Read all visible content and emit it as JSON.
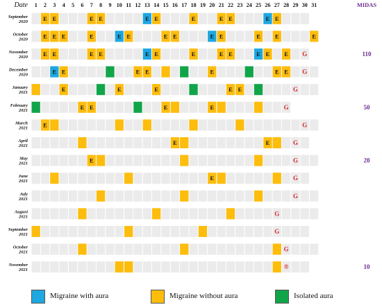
{
  "chart_data": {
    "type": "heatmap",
    "header_label": "Date",
    "midas_label": "MIDAS",
    "days": [
      1,
      2,
      3,
      4,
      5,
      6,
      7,
      8,
      9,
      10,
      11,
      12,
      13,
      14,
      15,
      16,
      17,
      18,
      19,
      20,
      21,
      22,
      23,
      24,
      25,
      26,
      27,
      28,
      29,
      30,
      31
    ],
    "rows": [
      {
        "month": "September",
        "year": "2020",
        "midas": "",
        "days_in_month": 30,
        "cells": [
          {
            "day": 2,
            "type": "without",
            "label": "E"
          },
          {
            "day": 3,
            "type": "without",
            "label": "E"
          },
          {
            "day": 7,
            "type": "without",
            "label": "E"
          },
          {
            "day": 8,
            "type": "without",
            "label": "E"
          },
          {
            "day": 13,
            "type": "with",
            "label": "E"
          },
          {
            "day": 14,
            "type": "without",
            "label": "E"
          },
          {
            "day": 18,
            "type": "without",
            "label": "E"
          },
          {
            "day": 21,
            "type": "without",
            "label": "E"
          },
          {
            "day": 22,
            "type": "without",
            "label": "E"
          },
          {
            "day": 26,
            "type": "with",
            "label": "E"
          },
          {
            "day": 27,
            "type": "without",
            "label": "E"
          }
        ],
        "g_day": null
      },
      {
        "month": "October",
        "year": "2020",
        "midas": "",
        "days_in_month": 31,
        "cells": [
          {
            "day": 2,
            "type": "without",
            "label": "E"
          },
          {
            "day": 3,
            "type": "without",
            "label": "E"
          },
          {
            "day": 4,
            "type": "without",
            "label": "E"
          },
          {
            "day": 7,
            "type": "without",
            "label": "E"
          },
          {
            "day": 10,
            "type": "with",
            "label": "E"
          },
          {
            "day": 11,
            "type": "without",
            "label": "E"
          },
          {
            "day": 15,
            "type": "without",
            "label": "E"
          },
          {
            "day": 16,
            "type": "without",
            "label": "E"
          },
          {
            "day": 20,
            "type": "with",
            "label": "E"
          },
          {
            "day": 21,
            "type": "without",
            "label": "E"
          },
          {
            "day": 25,
            "type": "without",
            "label": "E"
          },
          {
            "day": 27,
            "type": "without",
            "label": "E"
          },
          {
            "day": 31,
            "type": "without",
            "label": "E"
          }
        ],
        "g_day": null
      },
      {
        "month": "November",
        "year": "2020",
        "midas": "110",
        "days_in_month": 30,
        "cells": [
          {
            "day": 2,
            "type": "without",
            "label": "E"
          },
          {
            "day": 3,
            "type": "without",
            "label": "E"
          },
          {
            "day": 7,
            "type": "without",
            "label": "E"
          },
          {
            "day": 8,
            "type": "without",
            "label": "E"
          },
          {
            "day": 13,
            "type": "with",
            "label": "E"
          },
          {
            "day": 14,
            "type": "without",
            "label": "E"
          },
          {
            "day": 18,
            "type": "without",
            "label": "E"
          },
          {
            "day": 21,
            "type": "without",
            "label": "E"
          },
          {
            "day": 22,
            "type": "without",
            "label": "E"
          },
          {
            "day": 25,
            "type": "with",
            "label": "E"
          },
          {
            "day": 26,
            "type": "without",
            "label": "E"
          },
          {
            "day": 28,
            "type": "without",
            "label": "E"
          }
        ],
        "g_day": 30,
        "g_mark": "G"
      },
      {
        "month": "December",
        "year": "2020",
        "midas": "",
        "days_in_month": 31,
        "cells": [
          {
            "day": 3,
            "type": "with",
            "label": "E"
          },
          {
            "day": 4,
            "type": "without",
            "label": "E"
          },
          {
            "day": 9,
            "type": "isolated",
            "label": ""
          },
          {
            "day": 12,
            "type": "without",
            "label": "E"
          },
          {
            "day": 13,
            "type": "without",
            "label": "E"
          },
          {
            "day": 15,
            "type": "without",
            "label": ""
          },
          {
            "day": 17,
            "type": "isolated",
            "label": ""
          },
          {
            "day": 20,
            "type": "without",
            "label": "E"
          },
          {
            "day": 24,
            "type": "isolated",
            "label": ""
          },
          {
            "day": 27,
            "type": "without",
            "label": "E"
          },
          {
            "day": 28,
            "type": "without",
            "label": "E"
          }
        ],
        "g_day": 30,
        "g_mark": "G"
      },
      {
        "month": "January",
        "year": "2021",
        "midas": "",
        "days_in_month": 31,
        "cells": [
          {
            "day": 1,
            "type": "without",
            "label": ""
          },
          {
            "day": 4,
            "type": "without",
            "label": "E"
          },
          {
            "day": 8,
            "type": "isolated",
            "label": ""
          },
          {
            "day": 10,
            "type": "without",
            "label": "E"
          },
          {
            "day": 14,
            "type": "without",
            "label": "E"
          },
          {
            "day": 18,
            "type": "isolated",
            "label": ""
          },
          {
            "day": 22,
            "type": "without",
            "label": "E"
          },
          {
            "day": 23,
            "type": "without",
            "label": "E"
          },
          {
            "day": 25,
            "type": "isolated",
            "label": ""
          }
        ],
        "g_day": 29,
        "g_mark": "G"
      },
      {
        "month": "February",
        "year": "2021",
        "midas": "50",
        "days_in_month": 28,
        "cells": [
          {
            "day": 1,
            "type": "isolated",
            "label": ""
          },
          {
            "day": 6,
            "type": "without",
            "label": "E"
          },
          {
            "day": 7,
            "type": "without",
            "label": "E"
          },
          {
            "day": 12,
            "type": "isolated",
            "label": ""
          },
          {
            "day": 15,
            "type": "without",
            "label": "E"
          },
          {
            "day": 16,
            "type": "without",
            "label": ""
          },
          {
            "day": 20,
            "type": "without",
            "label": "E"
          },
          {
            "day": 21,
            "type": "without",
            "label": ""
          },
          {
            "day": 25,
            "type": "without",
            "label": ""
          }
        ],
        "g_day": 28,
        "g_mark": "G"
      },
      {
        "month": "March",
        "year": "2021",
        "midas": "",
        "days_in_month": 31,
        "cells": [
          {
            "day": 2,
            "type": "without",
            "label": "E"
          },
          {
            "day": 3,
            "type": "without",
            "label": ""
          },
          {
            "day": 10,
            "type": "without",
            "label": ""
          },
          {
            "day": 13,
            "type": "without",
            "label": ""
          },
          {
            "day": 18,
            "type": "without",
            "label": ""
          },
          {
            "day": 23,
            "type": "without",
            "label": ""
          }
        ],
        "g_day": 30,
        "g_mark": "G"
      },
      {
        "month": "April",
        "year": "2021",
        "midas": "",
        "days_in_month": 30,
        "cells": [
          {
            "day": 6,
            "type": "without",
            "label": ""
          },
          {
            "day": 16,
            "type": "without",
            "label": "E"
          },
          {
            "day": 17,
            "type": "without",
            "label": ""
          },
          {
            "day": 26,
            "type": "without",
            "label": "E"
          },
          {
            "day": 27,
            "type": "without",
            "label": ""
          }
        ],
        "g_day": 29,
        "g_mark": "G"
      },
      {
        "month": "May",
        "year": "2021",
        "midas": "20",
        "days_in_month": 31,
        "cells": [
          {
            "day": 7,
            "type": "without",
            "label": "E"
          },
          {
            "day": 8,
            "type": "without",
            "label": ""
          },
          {
            "day": 17,
            "type": "without",
            "label": ""
          },
          {
            "day": 25,
            "type": "without",
            "label": ""
          }
        ],
        "g_day": 29,
        "g_mark": "G"
      },
      {
        "month": "June",
        "year": "2021",
        "midas": "",
        "days_in_month": 30,
        "cells": [
          {
            "day": 3,
            "type": "without",
            "label": ""
          },
          {
            "day": 11,
            "type": "without",
            "label": ""
          },
          {
            "day": 20,
            "type": "without",
            "label": "E"
          },
          {
            "day": 21,
            "type": "without",
            "label": ""
          },
          {
            "day": 27,
            "type": "without",
            "label": ""
          }
        ],
        "g_day": 29,
        "g_mark": "G"
      },
      {
        "month": "July",
        "year": "2021",
        "midas": "",
        "days_in_month": 31,
        "cells": [
          {
            "day": 8,
            "type": "without",
            "label": ""
          },
          {
            "day": 17,
            "type": "without",
            "label": ""
          },
          {
            "day": 25,
            "type": "without",
            "label": ""
          }
        ],
        "g_day": 29,
        "g_mark": "G"
      },
      {
        "month": "August",
        "year": "2021",
        "midas": "",
        "days_in_month": 31,
        "cells": [
          {
            "day": 6,
            "type": "without",
            "label": ""
          },
          {
            "day": 14,
            "type": "without",
            "label": ""
          },
          {
            "day": 22,
            "type": "without",
            "label": ""
          }
        ],
        "g_day": 27,
        "g_mark": "G"
      },
      {
        "month": "September",
        "year": "2021",
        "midas": "",
        "days_in_month": 30,
        "cells": [
          {
            "day": 1,
            "type": "without",
            "label": ""
          },
          {
            "day": 11,
            "type": "without",
            "label": ""
          },
          {
            "day": 19,
            "type": "without",
            "label": ""
          }
        ],
        "g_day": 27,
        "g_mark": "G"
      },
      {
        "month": "October",
        "year": "2021",
        "midas": "",
        "days_in_month": 31,
        "cells": [
          {
            "day": 6,
            "type": "without",
            "label": ""
          },
          {
            "day": 17,
            "type": "without",
            "label": ""
          },
          {
            "day": 27,
            "type": "without",
            "label": ""
          }
        ],
        "g_day": 28,
        "g_mark": "G"
      },
      {
        "month": "November",
        "year": "2021",
        "midas": "10",
        "days_in_month": 30,
        "cells": [
          {
            "day": 10,
            "type": "without",
            "label": ""
          },
          {
            "day": 11,
            "type": "without",
            "label": ""
          },
          {
            "day": 27,
            "type": "without",
            "label": ""
          }
        ],
        "g_day": 28,
        "g_mark": "®"
      }
    ]
  },
  "legend": [
    {
      "key": "with",
      "label": "Migraine with aura"
    },
    {
      "key": "without",
      "label": "Migraine without aura"
    },
    {
      "key": "isolated",
      "label": "Isolated aura"
    }
  ],
  "colors": {
    "with": "#1ea7e1",
    "without": "#fdbd0d",
    "isolated": "#11a54a",
    "empty": "#ebebeb",
    "g_mark": "#d6262b",
    "midas": "#6a2c91"
  }
}
